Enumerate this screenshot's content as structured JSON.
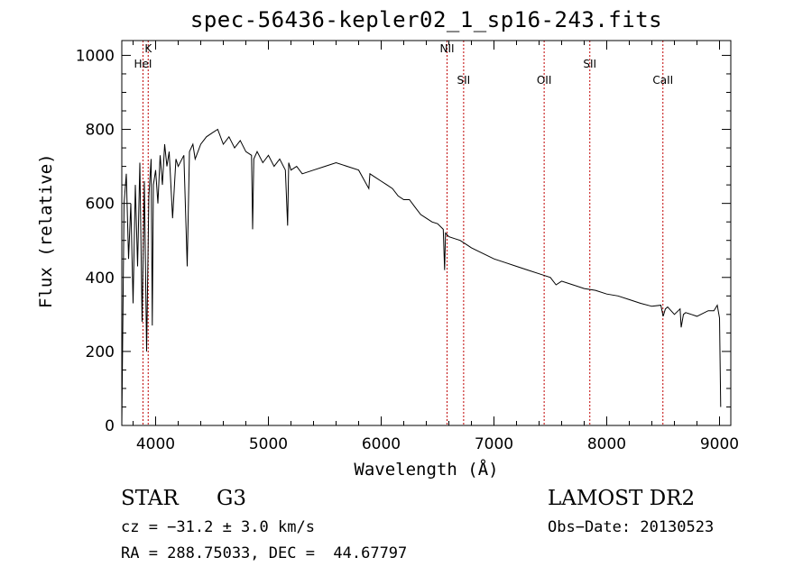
{
  "chart_data": {
    "type": "line",
    "title": "spec-56436-kepler02_1_sp16-243.fits",
    "xlabel": "Wavelength (Å)",
    "ylabel": "Flux (relative)",
    "xlim": [
      3700,
      9100
    ],
    "ylim": [
      0,
      1040
    ],
    "x_ticks": [
      4000,
      5000,
      6000,
      7000,
      8000,
      9000
    ],
    "y_ticks": [
      0,
      200,
      400,
      600,
      800,
      1000
    ],
    "grid": false,
    "series": [
      {
        "x": [
          3700,
          3720,
          3740,
          3760,
          3780,
          3800,
          3820,
          3840,
          3860,
          3880,
          3900,
          3920,
          3940,
          3960,
          3970,
          3980,
          4000,
          4020,
          4040,
          4060,
          4080,
          4100,
          4120,
          4150,
          4180,
          4200,
          4250,
          4280,
          4300,
          4330,
          4350,
          4400,
          4450,
          4500,
          4550,
          4600,
          4650,
          4700,
          4750,
          4800,
          4850,
          4860,
          4870,
          4900,
          4950,
          5000,
          5050,
          5100,
          5150,
          5170,
          5180,
          5200,
          5250,
          5300,
          5400,
          5500,
          5600,
          5700,
          5800,
          5890,
          5900,
          5950,
          6000,
          6050,
          6100,
          6150,
          6200,
          6250,
          6300,
          6350,
          6400,
          6450,
          6500,
          6550,
          6562,
          6570,
          6600,
          6650,
          6700,
          6750,
          6800,
          6900,
          7000,
          7100,
          7200,
          7300,
          7400,
          7500,
          7550,
          7600,
          7700,
          7800,
          7900,
          8000,
          8100,
          8200,
          8300,
          8400,
          8480,
          8500,
          8520,
          8540,
          8600,
          8650,
          8660,
          8680,
          8700,
          8750,
          8800,
          8900,
          8950,
          8980,
          9000,
          9010
        ],
        "values": [
          0,
          600,
          680,
          450,
          600,
          330,
          650,
          430,
          710,
          280,
          660,
          200,
          620,
          720,
          270,
          650,
          690,
          600,
          730,
          650,
          760,
          700,
          740,
          560,
          720,
          700,
          730,
          430,
          740,
          760,
          720,
          760,
          780,
          790,
          800,
          760,
          780,
          750,
          770,
          740,
          730,
          530,
          720,
          740,
          710,
          730,
          700,
          720,
          690,
          540,
          710,
          690,
          700,
          680,
          690,
          700,
          710,
          700,
          690,
          640,
          680,
          670,
          660,
          650,
          640,
          620,
          610,
          610,
          590,
          570,
          560,
          550,
          545,
          530,
          420,
          520,
          510,
          505,
          500,
          490,
          480,
          465,
          450,
          440,
          430,
          420,
          410,
          400,
          380,
          390,
          380,
          370,
          365,
          355,
          350,
          340,
          330,
          322,
          325,
          295,
          315,
          320,
          300,
          315,
          265,
          300,
          305,
          300,
          295,
          310,
          310,
          325,
          290,
          50
        ]
      }
    ],
    "lines": [
      {
        "label": "K",
        "x": 3934
      },
      {
        "label": "HeI",
        "x": 3888
      },
      {
        "label": "NII",
        "x": 6584
      },
      {
        "label": "SII",
        "x": 6731
      },
      {
        "label": "OII",
        "x": 7445
      },
      {
        "label": "SII",
        "x": 7850
      },
      {
        "label": "CaII",
        "x": 8498
      }
    ],
    "line_color": "#c00000"
  },
  "footer": {
    "object_class": "STAR",
    "subclass": "G3",
    "survey": "LAMOST DR2",
    "cz": "cz = −31.2 ± 3.0 km/s",
    "obs_date": "Obs−Date: 20130523",
    "coords": "RA = 288.75033, DEC =  44.67797"
  }
}
